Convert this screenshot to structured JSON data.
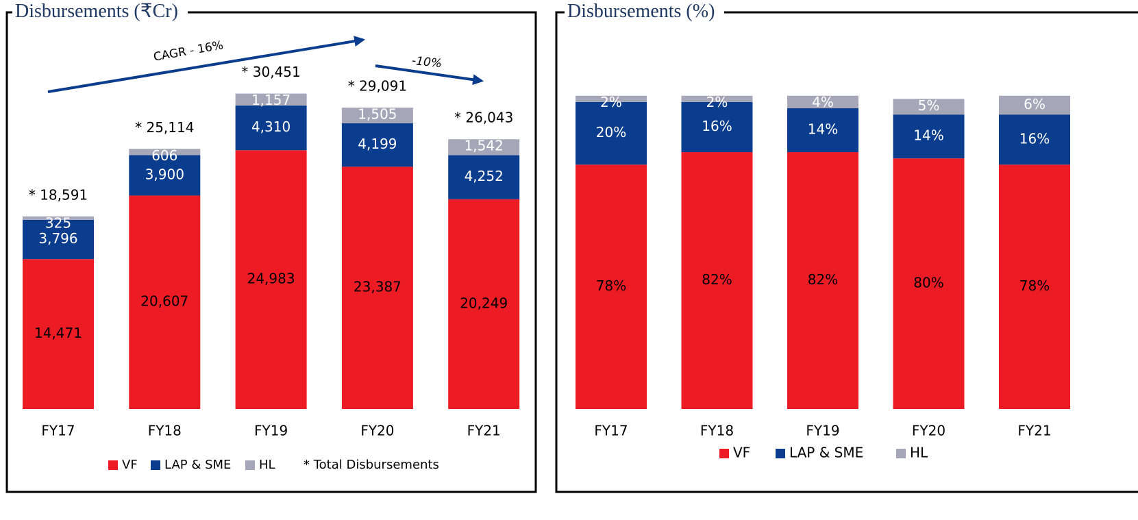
{
  "chart_data": [
    {
      "type": "bar",
      "stacked": true,
      "title": "Disbursements (₹Cr)",
      "categories": [
        "FY17",
        "FY18",
        "FY19",
        "FY20",
        "FY21"
      ],
      "series": [
        {
          "name": "VF",
          "color": "#ed1c24",
          "values": [
            14471,
            20607,
            24983,
            23387,
            20249
          ],
          "value_labels": [
            "14,471",
            "20,607",
            "24,983",
            "23,387",
            "20,249"
          ]
        },
        {
          "name": "LAP & SME",
          "color": "#0b3d8f",
          "values": [
            3796,
            3900,
            4310,
            4199,
            4252
          ],
          "value_labels": [
            "3,796",
            "3,900",
            "4,310",
            "4,199",
            "4,252"
          ]
        },
        {
          "name": "HL",
          "color": "#a5a7b8",
          "values": [
            325,
            606,
            1157,
            1505,
            1542
          ],
          "value_labels": [
            "325",
            "606",
            "1,157",
            "1,505",
            "1,542"
          ]
        }
      ],
      "totals": [
        18591,
        25114,
        30451,
        29091,
        26043
      ],
      "total_labels": [
        "* 18,591",
        "* 25,114",
        "* 30,451",
        "* 29,091",
        "* 26,043"
      ],
      "legend_note": "* Total Disbursements",
      "annotations": [
        "CAGR - 16%",
        "-10%"
      ],
      "ylim": [
        0,
        37500
      ]
    },
    {
      "type": "bar",
      "stacked": true,
      "title": "Disbursements (%)",
      "categories": [
        "FY17",
        "FY18",
        "FY19",
        "FY20",
        "FY21"
      ],
      "series": [
        {
          "name": "VF",
          "color": "#ed1c24",
          "values": [
            78,
            82,
            82,
            80,
            78
          ],
          "value_labels": [
            "78%",
            "82%",
            "82%",
            "80%",
            "78%"
          ]
        },
        {
          "name": "LAP & SME",
          "color": "#0b3d8f",
          "values": [
            20,
            16,
            14,
            14,
            16
          ],
          "value_labels": [
            "20%",
            "16%",
            "14%",
            "14%",
            "16%"
          ]
        },
        {
          "name": "HL",
          "color": "#a5a7b8",
          "values": [
            2,
            2,
            4,
            5,
            6
          ],
          "value_labels": [
            "2%",
            "2%",
            "4%",
            "5%",
            "6%"
          ]
        }
      ],
      "ylim": [
        0,
        124
      ]
    }
  ]
}
